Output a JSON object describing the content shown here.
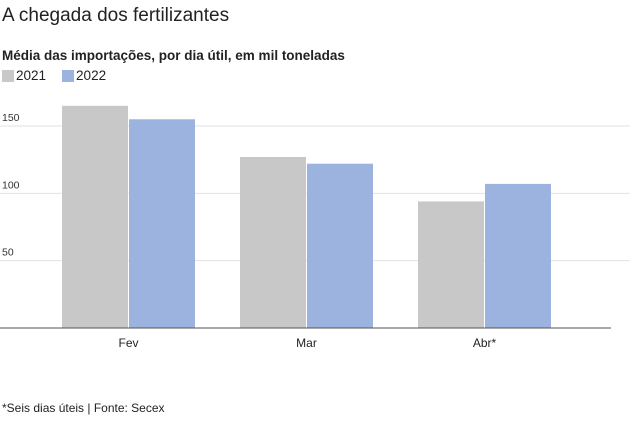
{
  "title": "A chegada dos fertilizantes",
  "subtitle": "Média das importações, por dia útil, em mil toneladas",
  "legend": [
    {
      "label": "2021",
      "color": "#c8c8c8"
    },
    {
      "label": "2022",
      "color": "#9db3df"
    }
  ],
  "source": "*Seis dias úteis | Fonte: Secex",
  "chart_data": {
    "type": "bar",
    "categories": [
      "Fev",
      "Mar",
      "Abr*"
    ],
    "series": [
      {
        "name": "2021",
        "values": [
          165,
          127,
          94
        ],
        "color": "#c8c8c8"
      },
      {
        "name": "2022",
        "values": [
          155,
          122,
          107
        ],
        "color": "#9db3df"
      }
    ],
    "title": "A chegada dos fertilizantes",
    "subtitle": "Média das importações, por dia útil, em mil toneladas",
    "yticks": [
      50,
      100,
      150
    ],
    "ylim": [
      0,
      175
    ],
    "grid": true,
    "legend_position": "top-left"
  }
}
